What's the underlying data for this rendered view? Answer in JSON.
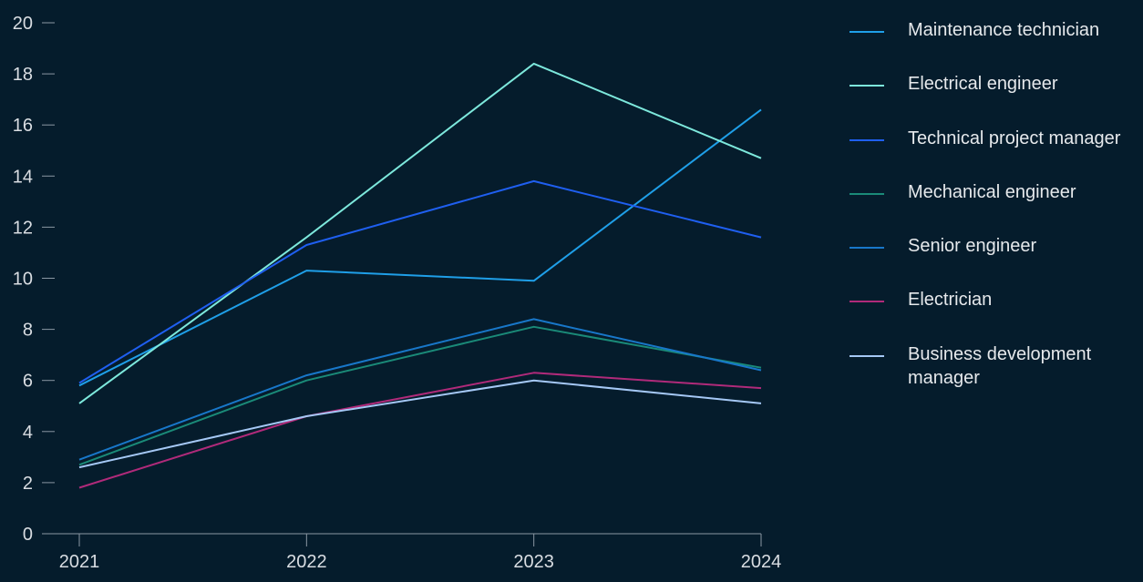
{
  "chart_data": {
    "type": "line",
    "x": [
      "2021",
      "2022",
      "2023",
      "2024"
    ],
    "ylim": [
      0,
      20
    ],
    "yticks": [
      "0",
      "2",
      "4",
      "6",
      "8",
      "10",
      "12",
      "14",
      "16",
      "18",
      "20"
    ],
    "grid": false,
    "legend_position": "right",
    "series": [
      {
        "name": "Maintenance technician",
        "color": "#1f9fe8",
        "values": [
          5.8,
          10.3,
          9.9,
          16.6
        ]
      },
      {
        "name": "Electrical engineer",
        "color": "#7de8dc",
        "values": [
          5.1,
          11.6,
          18.4,
          14.7
        ]
      },
      {
        "name": "Technical project manager",
        "color": "#1f5ff0",
        "values": [
          5.9,
          11.3,
          13.8,
          11.6
        ]
      },
      {
        "name": "Mechanical engineer",
        "color": "#1a8a78",
        "values": [
          2.7,
          6.0,
          8.1,
          6.5
        ]
      },
      {
        "name": "Senior engineer",
        "color": "#1877c9",
        "values": [
          2.9,
          6.2,
          8.4,
          6.4
        ]
      },
      {
        "name": "Electrician",
        "color": "#b02a7a",
        "values": [
          1.8,
          4.6,
          6.3,
          5.7
        ]
      },
      {
        "name": "Business development manager",
        "color": "#a5c8f5",
        "values": [
          2.6,
          4.6,
          6.0,
          5.1
        ]
      }
    ]
  }
}
